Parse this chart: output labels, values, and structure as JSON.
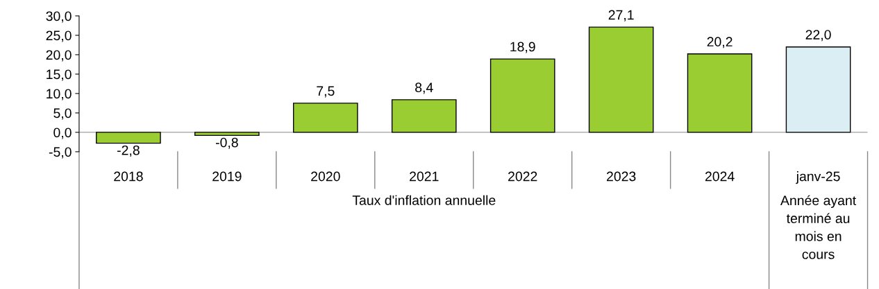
{
  "chart_data": {
    "type": "bar",
    "categories": [
      "2018",
      "2019",
      "2020",
      "2021",
      "2022",
      "2023",
      "2024",
      "janv-25"
    ],
    "values": [
      -2.8,
      -0.8,
      7.5,
      8.4,
      18.9,
      27.1,
      20.2,
      22.0
    ],
    "colors": [
      "#9acd32",
      "#9acd32",
      "#9acd32",
      "#9acd32",
      "#9acd32",
      "#9acd32",
      "#9acd32",
      "#daeef3"
    ],
    "value_labels": [
      "-2,8",
      "-0,8",
      "7,5",
      "8,4",
      "18,9",
      "27,1",
      "20,2",
      "22,0"
    ],
    "ylim": [
      -5,
      30
    ],
    "yticks": [
      {
        "value": -5,
        "label": "-5,0"
      },
      {
        "value": 0,
        "label": "0,0"
      },
      {
        "value": 5,
        "label": "5,0"
      },
      {
        "value": 10,
        "label": "10,0"
      },
      {
        "value": 15,
        "label": "15,0"
      },
      {
        "value": 20,
        "label": "20,0"
      },
      {
        "value": 25,
        "label": "25,0"
      },
      {
        "value": 30,
        "label": "30,0"
      }
    ],
    "annotations": [
      "Taux d'inflation annuelle",
      "Année ayant\nterminé au\nmois en\ncours"
    ],
    "ref_lines": [
      {
        "axis": "y",
        "value": 0,
        "color": "#a0a0a0"
      }
    ],
    "grid": false,
    "legend": false
  }
}
